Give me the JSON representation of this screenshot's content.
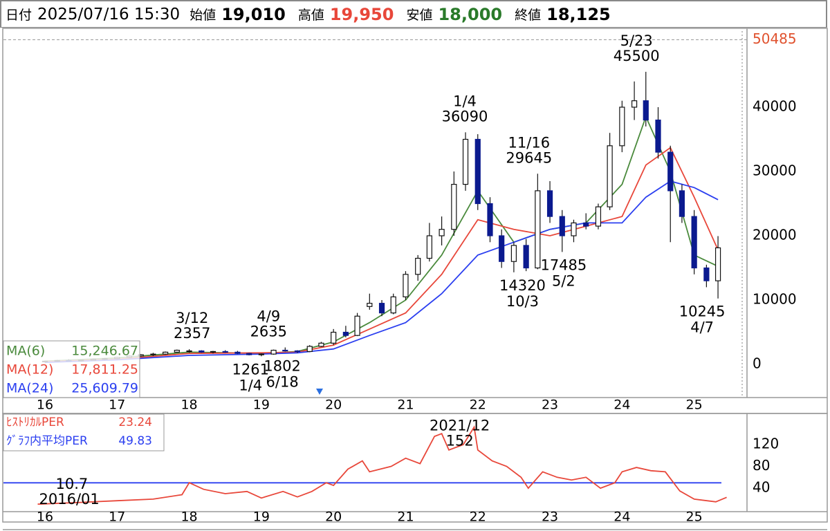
{
  "header": {
    "date_label": "日付",
    "date": "2025/07/16 15:30",
    "open_label": "始値",
    "open": "19,010",
    "high_label": "高値",
    "high": "19,950",
    "low_label": "安値",
    "low": "18,000",
    "close_label": "終値",
    "close": "18,125"
  },
  "chart_data": [
    {
      "type": "candlestick",
      "x": [
        2016.0,
        2016.17,
        2016.33,
        2016.5,
        2016.67,
        2016.83,
        2017.0,
        2017.17,
        2017.33,
        2017.5,
        2017.67,
        2017.83,
        2018.0,
        2018.17,
        2018.33,
        2018.5,
        2018.67,
        2018.83,
        2019.0,
        2019.17,
        2019.33,
        2019.5,
        2019.67,
        2019.83,
        2020.0,
        2020.17,
        2020.33,
        2020.5,
        2020.67,
        2020.83,
        2021.0,
        2021.17,
        2021.33,
        2021.5,
        2021.67,
        2021.83,
        2022.0,
        2022.17,
        2022.33,
        2022.5,
        2022.67,
        2022.83,
        2023.0,
        2023.17,
        2023.33,
        2023.5,
        2023.67,
        2023.83,
        2024.0,
        2024.17,
        2024.33,
        2024.5,
        2024.67,
        2024.83,
        2025.0,
        2025.17,
        2025.33
      ],
      "open": [
        400,
        500,
        600,
        550,
        650,
        800,
        900,
        1100,
        1300,
        1500,
        1600,
        1900,
        2000,
        2100,
        1900,
        2000,
        1900,
        1700,
        1500,
        1600,
        2200,
        2100,
        2000,
        2800,
        3300,
        5000,
        4500,
        9000,
        9500,
        8000,
        10500,
        14000,
        16500,
        20000,
        21000,
        28000,
        35000,
        25000,
        20000,
        16000,
        18500,
        15000,
        27000,
        23000,
        20000,
        22000,
        21500,
        24500,
        34000,
        40000,
        41000,
        38000,
        33000,
        27000,
        23000,
        15000,
        13000
      ],
      "high": [
        600,
        700,
        800,
        700,
        900,
        1000,
        1200,
        1400,
        1600,
        1800,
        2000,
        2300,
        2357,
        2200,
        2100,
        2200,
        2100,
        1800,
        1700,
        2300,
        2635,
        2200,
        3000,
        3500,
        5500,
        6000,
        8000,
        11000,
        10000,
        11000,
        14500,
        17000,
        22000,
        23000,
        30000,
        36090,
        35800,
        26000,
        21000,
        19000,
        19500,
        29645,
        28500,
        24000,
        22500,
        23500,
        25000,
        36000,
        41000,
        44000,
        45500,
        40000,
        34000,
        28000,
        24000,
        15500,
        19950
      ],
      "low": [
        300,
        400,
        500,
        450,
        600,
        700,
        800,
        1000,
        1200,
        1300,
        1500,
        1800,
        1800,
        1800,
        1700,
        1800,
        1600,
        1400,
        1261,
        1500,
        2000,
        1802,
        1900,
        2700,
        3000,
        4200,
        4400,
        8500,
        7500,
        7800,
        10000,
        13000,
        16000,
        18500,
        20000,
        27000,
        24000,
        19000,
        15000,
        14320,
        14500,
        14800,
        22000,
        17485,
        19000,
        21000,
        21000,
        24000,
        33000,
        38000,
        37000,
        32000,
        19000,
        22000,
        14000,
        12000,
        10245
      ],
      "close": [
        500,
        600,
        550,
        650,
        800,
        900,
        1100,
        1300,
        1500,
        1600,
        1900,
        2200,
        2100,
        1900,
        2000,
        1900,
        1700,
        1500,
        1600,
        2200,
        2100,
        2000,
        2800,
        3300,
        5000,
        4500,
        7500,
        9500,
        8000,
        10500,
        14000,
        16500,
        20000,
        21000,
        28000,
        35000,
        25000,
        20000,
        16000,
        18500,
        15000,
        27000,
        23000,
        20000,
        22000,
        21500,
        24500,
        34000,
        40000,
        41000,
        38000,
        33000,
        27000,
        23000,
        15000,
        13000,
        18125
      ],
      "up_color": "#ffffff",
      "down_color": "#0b1a8f",
      "xlim": [
        2015.425,
        2025.732
      ],
      "ylim": [
        -5160,
        52150
      ],
      "yticks": [
        0,
        10000,
        20000,
        30000,
        40000
      ],
      "xticks": [
        {
          "value": 2016,
          "label": "16"
        },
        {
          "value": 2017,
          "label": "17"
        },
        {
          "value": 2018,
          "label": "18"
        },
        {
          "value": 2019,
          "label": "19"
        },
        {
          "value": 2020,
          "label": "20"
        },
        {
          "value": 2021,
          "label": "21"
        },
        {
          "value": 2022,
          "label": "22"
        },
        {
          "value": 2023,
          "label": "23"
        },
        {
          "value": 2024,
          "label": "24"
        },
        {
          "value": 2025,
          "label": "25"
        }
      ],
      "max_line": 50485,
      "max_line_color": "#e0522e",
      "annotations": [
        {
          "date": "3/12",
          "value": 2357,
          "x": 2018.04,
          "kind": "high"
        },
        {
          "date": "1/4",
          "value": 1261,
          "x": 2018.85,
          "kind": "low"
        },
        {
          "date": "4/9",
          "value": 2635,
          "x": 2019.1,
          "kind": "high"
        },
        {
          "date": "6/18",
          "value": 1802,
          "x": 2019.29,
          "kind": "low"
        },
        {
          "date": "1/4",
          "value": 36090,
          "x": 2021.82,
          "kind": "high"
        },
        {
          "date": "10/3",
          "value": 14320,
          "x": 2022.62,
          "kind": "low"
        },
        {
          "date": "11/16",
          "value": 29645,
          "x": 2022.71,
          "kind": "high"
        },
        {
          "date": "5/2",
          "value": 17485,
          "x": 2023.19,
          "kind": "low"
        },
        {
          "date": "5/23",
          "value": 45500,
          "x": 2024.2,
          "kind": "high"
        },
        {
          "date": "4/7",
          "value": 10245,
          "x": 2025.11,
          "kind": "low"
        }
      ],
      "series": [
        {
          "name": "MA(6)",
          "color": "#4a8a3c",
          "last_label": "15,246.67",
          "x": [
            2016,
            2017,
            2018,
            2019,
            2019.5,
            2020,
            2020.5,
            2021,
            2021.5,
            2022,
            2022.5,
            2023,
            2023.5,
            2024,
            2024.33,
            2024.67,
            2025,
            2025.33
          ],
          "values": [
            500,
            1000,
            1900,
            1700,
            2000,
            3500,
            6500,
            10000,
            17000,
            27000,
            19000,
            21000,
            22000,
            28000,
            38500,
            30000,
            17000,
            15246.67
          ]
        },
        {
          "name": "MA(12)",
          "color": "#e8473a",
          "last_label": "17,811.25",
          "x": [
            2016,
            2017,
            2018,
            2019,
            2019.5,
            2020,
            2020.5,
            2021,
            2021.5,
            2022,
            2022.5,
            2023,
            2023.5,
            2024,
            2024.33,
            2024.67,
            2025,
            2025.33
          ],
          "values": [
            400,
            800,
            1700,
            1800,
            1900,
            3000,
            5500,
            8000,
            14000,
            22500,
            21000,
            20000,
            21500,
            23000,
            31000,
            33700,
            26000,
            17811.25
          ]
        },
        {
          "name": "MA(24)",
          "color": "#2b3ff0",
          "last_label": "25,609.79",
          "x": [
            2016,
            2017,
            2018,
            2019,
            2019.5,
            2020,
            2020.5,
            2021,
            2021.5,
            2022,
            2022.5,
            2023,
            2023.5,
            2024,
            2024.33,
            2024.67,
            2025,
            2025.33
          ],
          "values": [
            300,
            700,
            1400,
            1600,
            1800,
            2400,
            4500,
            6500,
            11000,
            17000,
            19000,
            21000,
            22000,
            22000,
            26000,
            28500,
            27500,
            25609.79
          ]
        }
      ]
    },
    {
      "type": "line",
      "xlim": [
        2015.425,
        2025.732
      ],
      "ylim": [
        -3,
        177
      ],
      "yticks": [
        40,
        80,
        120
      ],
      "xticks": [
        {
          "value": 2016,
          "label": "16"
        },
        {
          "value": 2017,
          "label": "17"
        },
        {
          "value": 2018,
          "label": "18"
        },
        {
          "value": 2019,
          "label": "19"
        },
        {
          "value": 2020,
          "label": "20"
        },
        {
          "value": 2021,
          "label": "21"
        },
        {
          "value": 2022,
          "label": "22"
        },
        {
          "value": 2023,
          "label": "23"
        },
        {
          "value": 2024,
          "label": "24"
        },
        {
          "value": 2025,
          "label": "25"
        }
      ],
      "series": [
        {
          "name": "ﾋｽﾄﾘｶﾙPER",
          "color": "#e8473a",
          "last_label": "23.24",
          "x": [
            2015.9,
            2016.5,
            2017.0,
            2017.5,
            2017.9,
            2018.0,
            2018.2,
            2018.5,
            2018.8,
            2019.0,
            2019.3,
            2019.5,
            2019.7,
            2019.9,
            2020.0,
            2020.2,
            2020.4,
            2020.5,
            2020.8,
            2021.0,
            2021.2,
            2021.4,
            2021.5,
            2021.6,
            2021.8,
            2021.95,
            2022.0,
            2022.2,
            2022.4,
            2022.6,
            2022.7,
            2022.9,
            2023.1,
            2023.3,
            2023.5,
            2023.7,
            2023.9,
            2024.0,
            2024.2,
            2024.4,
            2024.6,
            2024.8,
            2025.0,
            2025.3,
            2025.45
          ],
          "values": [
            10.7,
            14,
            17,
            20,
            28,
            50,
            38,
            30,
            34,
            22,
            34,
            24,
            34,
            50,
            45,
            75,
            90,
            70,
            80,
            95,
            85,
            135,
            140,
            110,
            120,
            152,
            110,
            90,
            80,
            60,
            40,
            70,
            60,
            55,
            60,
            40,
            50,
            70,
            78,
            72,
            70,
            35,
            20,
            15,
            23.24
          ]
        }
      ],
      "average": {
        "name": "ｸﾞﾗﾌ内平均PER",
        "value": 49.83,
        "label": "49.83",
        "color": "#2b3ff0"
      },
      "annotations": [
        {
          "date": "2021/12",
          "value": 152,
          "x": 2021.75,
          "kind": "high"
        },
        {
          "date": "2016/01",
          "value": 10.7,
          "x": 2015.9,
          "kind": "low"
        }
      ]
    }
  ]
}
